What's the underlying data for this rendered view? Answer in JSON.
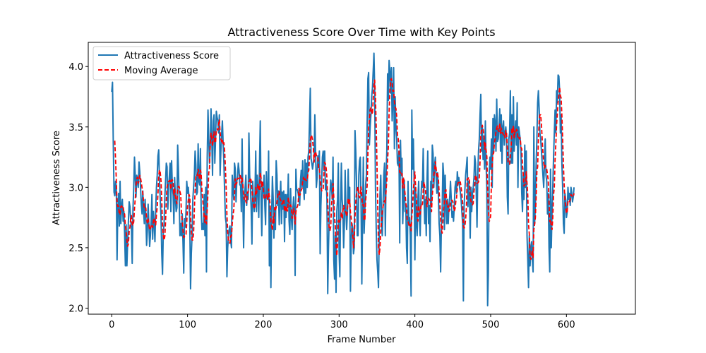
{
  "chart_data": {
    "type": "line",
    "title": "Attractiveness Score Over Time with Key Points",
    "xlabel": "Frame Number",
    "ylabel": "Attractiveness Score",
    "xlim": [
      -31,
      691
    ],
    "ylim": [
      1.95,
      4.2
    ],
    "xticks": [
      0,
      100,
      200,
      300,
      400,
      500,
      600
    ],
    "yticks": [
      2.0,
      2.5,
      3.0,
      3.5,
      4.0
    ],
    "xtick_labels": [
      "0",
      "100",
      "200",
      "300",
      "400",
      "500",
      "600"
    ],
    "ytick_labels": [
      "2.0",
      "2.5",
      "3.0",
      "3.5",
      "4.0"
    ],
    "grid": false,
    "legend": "top-left",
    "x_start": 0,
    "x_step": 1,
    "series": [
      {
        "name": "Attractiveness Score",
        "color": "#1f77b4",
        "style": "solid",
        "values": [
          3.79,
          3.87,
          3.38,
          2.96,
          2.93,
          3.05,
          3.01,
          2.4,
          2.82,
          2.95,
          2.68,
          3.05,
          2.7,
          2.85,
          2.9,
          2.72,
          2.8,
          2.62,
          2.35,
          2.69,
          2.35,
          2.55,
          2.72,
          2.88,
          2.84,
          2.72,
          2.67,
          2.37,
          2.82,
          2.99,
          3.25,
          3.1,
          2.92,
          3.1,
          3.05,
          3.0,
          3.21,
          3.13,
          3.0,
          2.86,
          2.78,
          2.97,
          2.8,
          2.7,
          2.9,
          2.77,
          2.52,
          2.64,
          2.86,
          2.7,
          2.51,
          2.6,
          2.72,
          2.94,
          2.57,
          2.8,
          2.7,
          2.55,
          2.82,
          3.0,
          3.1,
          3.26,
          3.31,
          3.05,
          2.9,
          2.76,
          2.45,
          2.28,
          2.63,
          2.69,
          2.91,
          3.05,
          3.2,
          3.17,
          2.82,
          3.0,
          3.09,
          3.2,
          2.8,
          3.22,
          3.0,
          2.94,
          2.7,
          3.08,
          2.91,
          2.8,
          2.83,
          3.35,
          3.15,
          2.9,
          2.6,
          2.7,
          2.6,
          2.78,
          2.55,
          2.29,
          2.74,
          2.67,
          2.8,
          3.05,
          2.95,
          3.0,
          2.9,
          2.71,
          2.16,
          2.45,
          2.6,
          2.9,
          3.0,
          3.1,
          3.3,
          3.19,
          2.94,
          2.96,
          3.36,
          3.05,
          3.02,
          3.32,
          2.82,
          2.65,
          2.7,
          2.65,
          2.94,
          2.6,
          3.0,
          2.3,
          3.25,
          3.64,
          3.4,
          3.2,
          3.35,
          3.65,
          3.4,
          3.1,
          3.55,
          3.6,
          3.2,
          3.4,
          3.63,
          3.58,
          3.55,
          3.45,
          3.6,
          3.1,
          3.3,
          3.44,
          3.55,
          3.36,
          3.2,
          2.95,
          2.75,
          2.7,
          2.26,
          2.5,
          2.6,
          2.65,
          2.68,
          2.56,
          2.5,
          3.1,
          3.0,
          2.9,
          3.2,
          3.15,
          2.88,
          3.05,
          3.09,
          3.2,
          3.14,
          3.02,
          3.02,
          2.8,
          3.4,
          2.9,
          2.5,
          2.9,
          3.0,
          3.1,
          2.85,
          2.95,
          2.9,
          3.45,
          3.1,
          3.0,
          2.82,
          2.53,
          3.05,
          2.9,
          2.8,
          2.94,
          3.3,
          2.8,
          3.1,
          3.0,
          2.75,
          3.2,
          3.55,
          2.9,
          2.6,
          3.0,
          2.95,
          3.1,
          2.85,
          2.69,
          3.13,
          2.91,
          2.9,
          3.3,
          2.35,
          2.83,
          2.17,
          2.78,
          3.09,
          2.91,
          2.58,
          2.81,
          2.65,
          3.22,
          3.1,
          2.85,
          2.97,
          2.69,
          2.91,
          3.05,
          2.7,
          2.96,
          2.82,
          2.97,
          2.55,
          2.94,
          2.75,
          2.94,
          2.84,
          3.11,
          2.72,
          2.61,
          2.99,
          2.75,
          2.65,
          2.82,
          2.92,
          2.82,
          2.27,
          3.15,
          2.98,
          2.98,
          2.95,
          2.9,
          2.85,
          3.05,
          3.14,
          3.0,
          3.22,
          3.0,
          2.9,
          3.23,
          2.95,
          3.2,
          3.0,
          3.25,
          3.3,
          3.55,
          3.82,
          3.24,
          3.2,
          3.15,
          3.2,
          3.25,
          3.6,
          3.28,
          3.0,
          3.08,
          3.26,
          3.2,
          3.3,
          2.45,
          2.85,
          3.05,
          3.25,
          3.3,
          3.14,
          3.3,
          2.98,
          3.06,
          2.9,
          2.12,
          2.5,
          2.75,
          2.95,
          3.06,
          3.0,
          2.9,
          3.25,
          2.4,
          2.24,
          2.6,
          2.13,
          2.8,
          2.9,
          3.2,
          2.47,
          2.26,
          2.85,
          3.2,
          2.9,
          2.8,
          2.5,
          2.7,
          3.14,
          2.8,
          2.65,
          2.8,
          3.15,
          2.88,
          3.0,
          2.14,
          2.55,
          2.7,
          2.66,
          2.45,
          2.5,
          3.47,
          3.3,
          3.05,
          2.6,
          2.6,
          3.1,
          3.22,
          3.25,
          2.85,
          2.2,
          2.75,
          3.25,
          2.62,
          2.8,
          3.02,
          3.1,
          3.51,
          3.9,
          3.95,
          3.35,
          3.5,
          3.6,
          3.75,
          3.82,
          3.96,
          4.11,
          3.8,
          3.0,
          2.66,
          2.4,
          2.3,
          2.17,
          2.68,
          2.95,
          3.1,
          2.7,
          2.6,
          2.85,
          3.1,
          3.2,
          2.6,
          3.1,
          3.3,
          3.94,
          3.72,
          4.05,
          3.96,
          3.78,
          3.99,
          3.55,
          3.7,
          3.99,
          3.32,
          3.75,
          3.5,
          3.4,
          3.2,
          3.18,
          3.3,
          2.54,
          3.39,
          3.1,
          3.24,
          2.7,
          2.95,
          3.06,
          2.8,
          2.85,
          2.5,
          2.37,
          3.05,
          2.7,
          2.75,
          2.6,
          2.1,
          3.64,
          3.15,
          3.4,
          3.05,
          2.4,
          3.0,
          2.7,
          2.6,
          2.9,
          3.05,
          2.74,
          2.6,
          2.9,
          3.05,
          3.0,
          3.32,
          2.95,
          2.7,
          2.9,
          2.6,
          3.05,
          3.3,
          2.7,
          2.85,
          2.55,
          3.05,
          2.85,
          3.35,
          3.28,
          3.0,
          3.18,
          3.25,
          3.09,
          2.95,
          3.12,
          2.95,
          2.7,
          2.6,
          2.3,
          2.7,
          2.8,
          3.2,
          3.1,
          2.65,
          3.1,
          2.85,
          2.7,
          2.9,
          2.7,
          2.85,
          2.92,
          3.05,
          2.9,
          2.75,
          2.8,
          2.72,
          2.84,
          3.0,
          3.05,
          2.95,
          3.13,
          3.05,
          3.08,
          3.0,
          2.96,
          2.9,
          2.8,
          2.7,
          2.06,
          2.85,
          2.98,
          3.1,
          3.17,
          3.25,
          2.84,
          3.05,
          2.95,
          2.58,
          3.0,
          2.8,
          2.95,
          3.0,
          3.08,
          3.26,
          3.2,
          2.95,
          2.67,
          3.1,
          3.3,
          3.4,
          3.6,
          3.77,
          3.3,
          3.5,
          3.23,
          3.4,
          3.15,
          3.55,
          3.2,
          2.97,
          2.02,
          2.3,
          3.1,
          3.25,
          3.15,
          3.4,
          3.0,
          3.57,
          3.3,
          3.6,
          3.53,
          3.3,
          3.73,
          3.38,
          3.4,
          3.5,
          3.65,
          3.3,
          3.6,
          3.2,
          3.5,
          3.55,
          3.35,
          3.45,
          3.5,
          3.4,
          2.92,
          2.78,
          3.4,
          3.45,
          3.8,
          3.2,
          3.6,
          3.2,
          3.75,
          3.3,
          3.45,
          3.55,
          3.35,
          3.7,
          3.0,
          3.5,
          3.45,
          3.4,
          3.3,
          2.95,
          2.8,
          3.1,
          2.9,
          3.35,
          3.0,
          3.3,
          2.6,
          2.4,
          2.17,
          2.6,
          2.35,
          2.5,
          2.55,
          2.4,
          2.3,
          3.5,
          2.7,
          2.85,
          3.2,
          3.4,
          3.7,
          3.8,
          3.65,
          3.45,
          3.4,
          3.3,
          3.2,
          3.1,
          3.0,
          3.2,
          3.4,
          3.1,
          3.05,
          2.78,
          2.95,
          2.5,
          2.3,
          3.15,
          2.5,
          2.8,
          3.0,
          3.25,
          3.45,
          3.64,
          3.45,
          3.8,
          3.7,
          3.93,
          3.92,
          3.8,
          3.45,
          3.6,
          3.2,
          3.0,
          2.7,
          2.62,
          2.95,
          2.9,
          2.75,
          2.8,
          3.0,
          2.9,
          2.95,
          2.85,
          3.0,
          2.95,
          2.88,
          2.92,
          3.0
        ]
      },
      {
        "name": "Moving Average",
        "color": "#ff0000",
        "style": "dashed",
        "x_start": 4,
        "window": 5,
        "values": []
      }
    ]
  }
}
